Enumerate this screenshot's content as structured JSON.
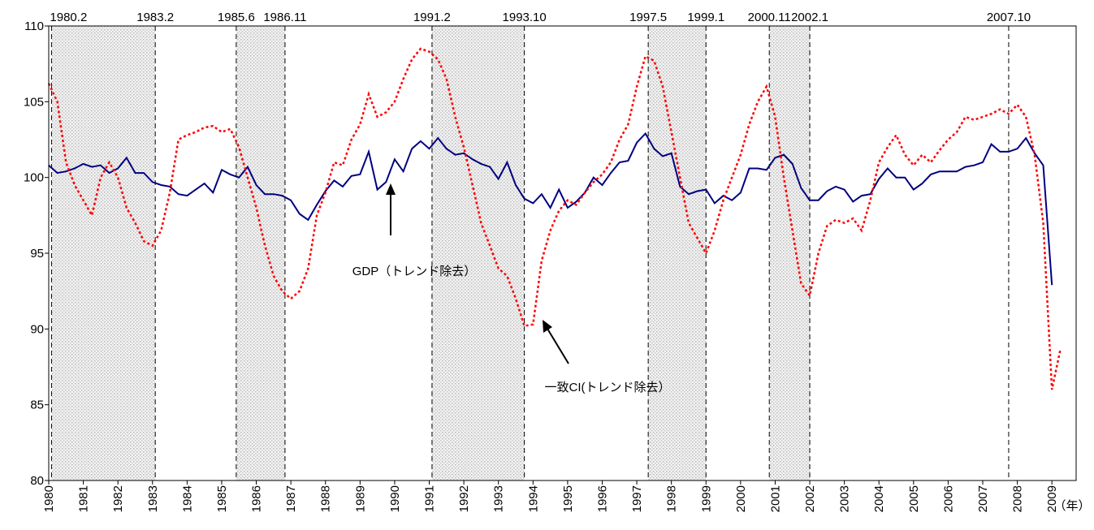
{
  "chart_data": {
    "type": "line",
    "xlabel": "（年）",
    "xlim": [
      1980,
      2009.7
    ],
    "ylim": [
      80,
      110
    ],
    "yticks": [
      80,
      85,
      90,
      95,
      100,
      105,
      110
    ],
    "xticks": [
      1980,
      1981,
      1982,
      1983,
      1984,
      1985,
      1986,
      1987,
      1988,
      1989,
      1990,
      1991,
      1992,
      1993,
      1994,
      1995,
      1996,
      1997,
      1998,
      1999,
      2000,
      2001,
      2002,
      2003,
      2004,
      2005,
      2006,
      2007,
      2008,
      2009
    ],
    "periods": [
      {
        "start": {
          "value": 1980.08,
          "label": "1980.2"
        },
        "end": {
          "value": 1983.08,
          "label": "1983.2"
        }
      },
      {
        "start": {
          "value": 1985.42,
          "label": "1985.6"
        },
        "end": {
          "value": 1986.83,
          "label": "1986.11"
        }
      },
      {
        "start": {
          "value": 1991.08,
          "label": "1991.2"
        },
        "end": {
          "value": 1993.75,
          "label": "1993.10"
        }
      },
      {
        "start": {
          "value": 1997.33,
          "label": "1997.5"
        },
        "end": {
          "value": 1999.0,
          "label": "1999.1"
        }
      },
      {
        "start": {
          "value": 2000.83,
          "label": "2000.11"
        },
        "end": {
          "value": 2002.0,
          "label": "2002.1"
        }
      },
      {
        "start": {
          "value": 2007.75,
          "label": "2007.10"
        }
      }
    ],
    "series": [
      {
        "name": "GDP（トレンド除去）",
        "color": "#000080",
        "style": "solid",
        "x": [
          1980,
          1980.25,
          1980.5,
          1980.75,
          1981,
          1981.25,
          1981.5,
          1981.75,
          1982,
          1982.25,
          1982.5,
          1982.75,
          1983,
          1983.25,
          1983.5,
          1983.75,
          1984,
          1984.25,
          1984.5,
          1984.75,
          1985,
          1985.25,
          1985.5,
          1985.75,
          1986,
          1986.25,
          1986.5,
          1986.75,
          1987,
          1987.25,
          1987.5,
          1987.75,
          1988,
          1988.25,
          1988.5,
          1988.75,
          1989,
          1989.25,
          1989.5,
          1989.75,
          1990,
          1990.25,
          1990.5,
          1990.75,
          1991,
          1991.25,
          1991.5,
          1991.75,
          1992,
          1992.25,
          1992.5,
          1992.75,
          1993,
          1993.25,
          1993.5,
          1993.75,
          1994,
          1994.25,
          1994.5,
          1994.75,
          1995,
          1995.25,
          1995.5,
          1995.75,
          1996,
          1996.25,
          1996.5,
          1996.75,
          1997,
          1997.25,
          1997.5,
          1997.75,
          1998,
          1998.25,
          1998.5,
          1998.75,
          1999,
          1999.25,
          1999.5,
          1999.75,
          2000,
          2000.25,
          2000.5,
          2000.75,
          2001,
          2001.25,
          2001.5,
          2001.75,
          2002,
          2002.25,
          2002.5,
          2002.75,
          2003,
          2003.25,
          2003.5,
          2003.75,
          2004,
          2004.25,
          2004.5,
          2004.75,
          2005,
          2005.25,
          2005.5,
          2005.75,
          2006,
          2006.25,
          2006.5,
          2006.75,
          2007,
          2007.25,
          2007.5,
          2007.75,
          2008,
          2008.25,
          2008.5,
          2008.75,
          2009
        ],
        "values": [
          100.8,
          100.3,
          100.4,
          100.6,
          100.9,
          100.7,
          100.8,
          100.3,
          100.6,
          101.3,
          100.3,
          100.3,
          99.7,
          99.5,
          99.4,
          98.9,
          98.8,
          99.2,
          99.6,
          99.0,
          100.5,
          100.2,
          100.0,
          100.7,
          99.5,
          98.9,
          98.9,
          98.8,
          98.5,
          97.6,
          97.2,
          98.2,
          99.1,
          99.8,
          99.4,
          100.1,
          100.2,
          101.7,
          99.2,
          99.7,
          101.2,
          100.4,
          101.9,
          102.4,
          101.9,
          102.6,
          101.9,
          101.5,
          101.6,
          101.2,
          100.9,
          100.7,
          99.9,
          101.0,
          99.5,
          98.6,
          98.3,
          98.9,
          98.0,
          99.2,
          98.0,
          98.4,
          99.0,
          100.0,
          99.5,
          100.3,
          101.0,
          101.1,
          102.3,
          102.9,
          101.9,
          101.4,
          101.6,
          99.4,
          98.9,
          99.1,
          99.2,
          98.3,
          98.8,
          98.5,
          99.0,
          100.6,
          100.6,
          100.5,
          101.3,
          101.5,
          100.9,
          99.3,
          98.5,
          98.5,
          99.1,
          99.4,
          99.2,
          98.4,
          98.8,
          98.9,
          99.9,
          100.6,
          100.0,
          100.0,
          99.2,
          99.6,
          100.2,
          100.4,
          100.4,
          100.4,
          100.7,
          100.8,
          101.0,
          102.2,
          101.7,
          101.7,
          101.9,
          102.6,
          101.6,
          100.8,
          92.9
        ]
      },
      {
        "name": "一致CI(トレンド除去）",
        "color": "#ff0000",
        "style": "dotted",
        "x": [
          1980,
          1980.25,
          1980.5,
          1980.75,
          1981,
          1981.25,
          1981.5,
          1981.75,
          1982,
          1982.25,
          1982.5,
          1982.75,
          1983,
          1983.25,
          1983.5,
          1983.75,
          1984,
          1984.25,
          1984.5,
          1984.75,
          1985,
          1985.25,
          1985.5,
          1985.75,
          1986,
          1986.25,
          1986.5,
          1986.75,
          1987,
          1987.25,
          1987.5,
          1987.75,
          1988,
          1988.25,
          1988.5,
          1988.75,
          1989,
          1989.25,
          1989.5,
          1989.75,
          1990,
          1990.25,
          1990.5,
          1990.75,
          1991,
          1991.25,
          1991.5,
          1991.75,
          1992,
          1992.25,
          1992.5,
          1992.75,
          1993,
          1993.25,
          1993.5,
          1993.75,
          1994,
          1994.25,
          1994.5,
          1994.75,
          1995,
          1995.25,
          1995.5,
          1995.75,
          1996,
          1996.25,
          1996.5,
          1996.75,
          1997,
          1997.25,
          1997.5,
          1997.75,
          1998,
          1998.25,
          1998.5,
          1998.75,
          1999,
          1999.25,
          1999.5,
          1999.75,
          2000,
          2000.25,
          2000.5,
          2000.75,
          2001,
          2001.25,
          2001.5,
          2001.75,
          2002,
          2002.25,
          2002.5,
          2002.75,
          2003,
          2003.25,
          2003.5,
          2003.75,
          2004,
          2004.25,
          2004.5,
          2004.75,
          2005,
          2005.25,
          2005.5,
          2005.75,
          2006,
          2006.25,
          2006.5,
          2006.75,
          2007,
          2007.25,
          2007.5,
          2007.75,
          2008,
          2008.25,
          2008.5,
          2008.75,
          2009,
          2009.25
        ],
        "values": [
          106.2,
          105.0,
          101.0,
          99.5,
          98.5,
          97.5,
          100.0,
          101.0,
          100.0,
          98.0,
          97.0,
          95.8,
          95.5,
          96.5,
          99.0,
          102.5,
          102.8,
          103.0,
          103.3,
          103.4,
          103.0,
          103.2,
          102.0,
          100.0,
          98.0,
          95.5,
          93.5,
          92.5,
          92.0,
          92.5,
          94.0,
          97.5,
          99.0,
          101.0,
          100.8,
          102.5,
          103.5,
          105.5,
          104.0,
          104.3,
          105.0,
          106.5,
          107.8,
          108.5,
          108.3,
          107.8,
          106.5,
          104.0,
          102.0,
          99.5,
          97.0,
          95.5,
          94.0,
          93.5,
          92.0,
          90.2,
          90.3,
          94.5,
          96.5,
          97.8,
          98.5,
          98.2,
          99.0,
          99.7,
          100.2,
          101.0,
          102.5,
          103.5,
          106.0,
          108.0,
          107.7,
          106.0,
          103.0,
          100.0,
          97.0,
          96.0,
          95.0,
          96.5,
          98.5,
          100.0,
          101.5,
          103.5,
          105.0,
          106.0,
          104.0,
          100.0,
          96.5,
          93.0,
          92.2,
          95.0,
          96.8,
          97.2,
          97.0,
          97.3,
          96.5,
          98.5,
          101.0,
          102.0,
          102.8,
          101.5,
          100.8,
          101.5,
          101.0,
          101.8,
          102.5,
          103.0,
          104.0,
          103.8,
          104.0,
          104.2,
          104.5,
          104.2,
          104.8,
          104.0,
          101.5,
          97.0,
          86.0,
          88.7
        ]
      }
    ]
  }
}
